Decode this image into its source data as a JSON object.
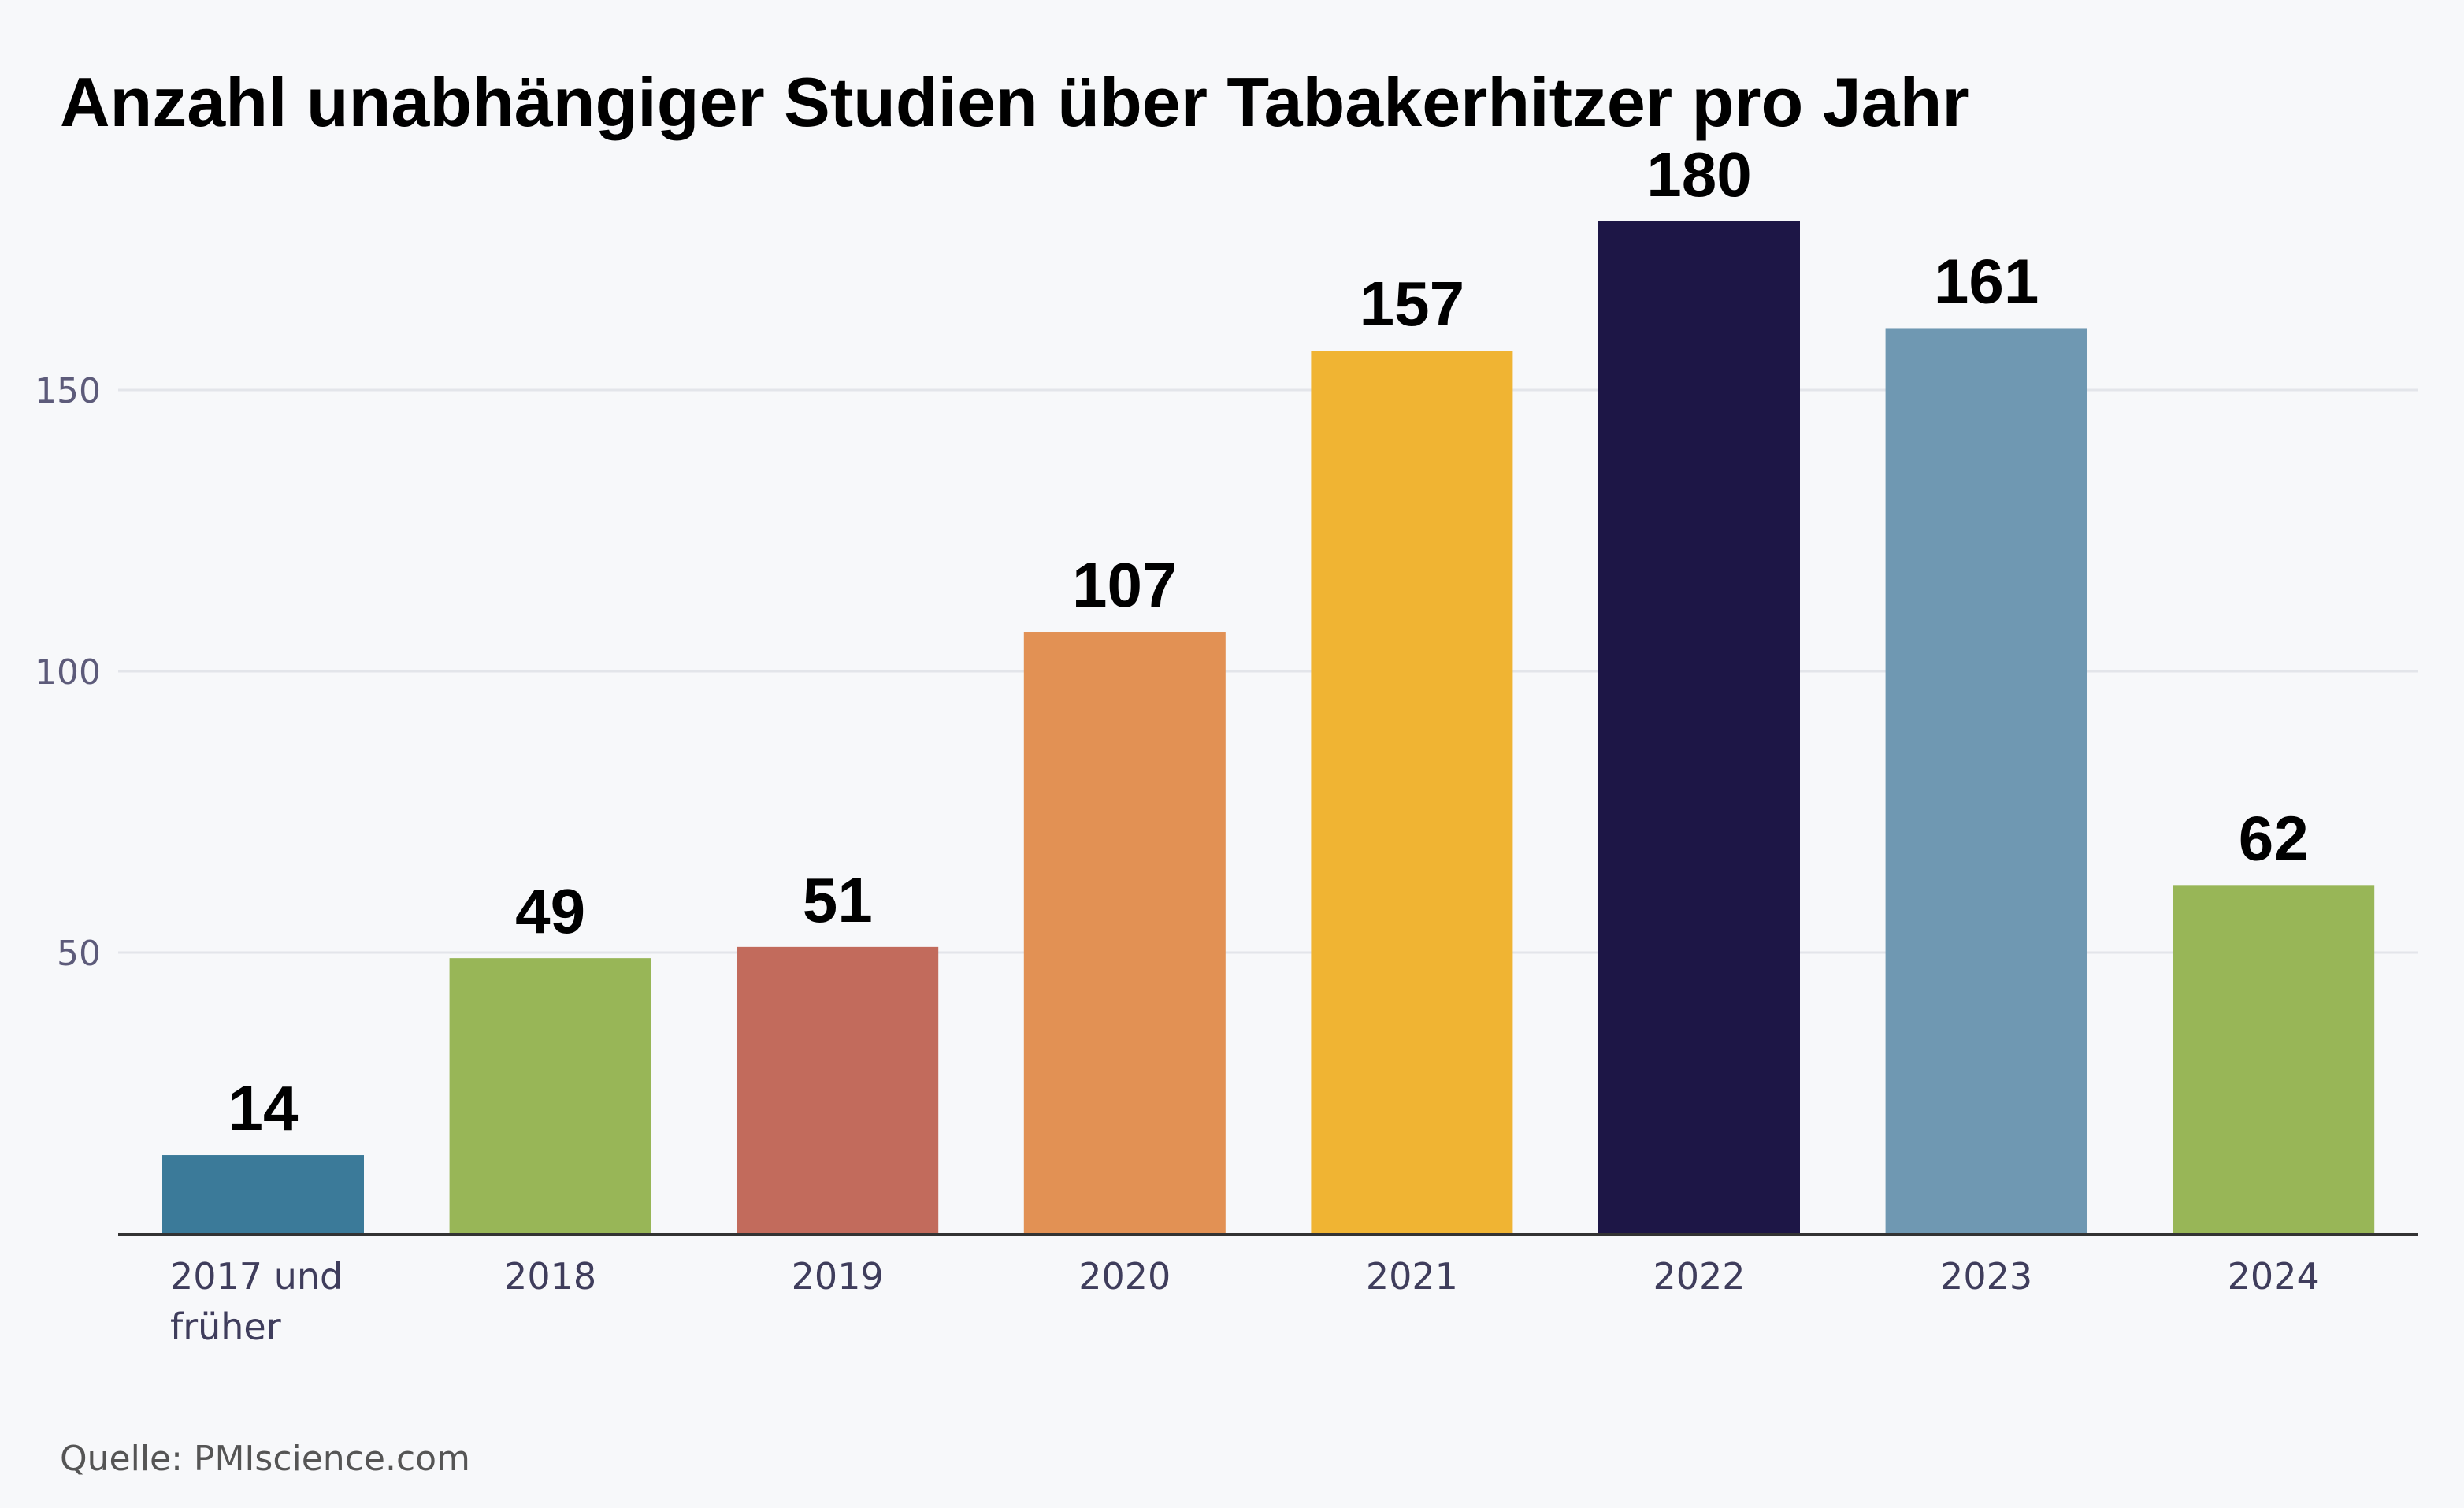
{
  "chart_data": {
    "type": "bar",
    "title": "Anzahl unabhängiger Studien über Tabakerhitzer pro Jahr",
    "categories": [
      "2017 und früher",
      "2018",
      "2019",
      "2020",
      "2021",
      "2022",
      "2023",
      "2024"
    ],
    "values": [
      14,
      49,
      51,
      107,
      157,
      180,
      161,
      62
    ],
    "colors": [
      "#3b7a99",
      "#98b657",
      "#c26b5c",
      "#e29154",
      "#f0b433",
      "#1d1646",
      "#6f98b2",
      "#98b657"
    ],
    "yticks": [
      50,
      100,
      150
    ],
    "ylim": [
      0,
      195
    ],
    "grid": true,
    "xlabel": "",
    "ylabel": "",
    "source": "Quelle: PMIscience.com"
  }
}
